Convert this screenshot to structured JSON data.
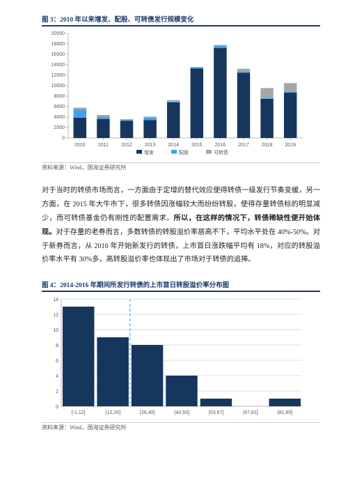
{
  "figure3": {
    "caption": "图 3：2010 年以来增发、配股、可转债发行规模变化",
    "source": "资料来源：Wind，国海证券研究所",
    "type": "bar-stacked",
    "categories": [
      "2010",
      "2011",
      "2012",
      "2013",
      "2014",
      "2015",
      "2016",
      "2017",
      "2018",
      "2019"
    ],
    "series": [
      {
        "name": "增发",
        "color": "#16365e",
        "values": [
          3900,
          3600,
          3300,
          3400,
          6800,
          13300,
          17200,
          12500,
          7500,
          8700
        ]
      },
      {
        "name": "配股",
        "color": "#3fa2e9",
        "values": [
          1500,
          400,
          100,
          500,
          150,
          200,
          400,
          150,
          150,
          100
        ]
      },
      {
        "name": "可转债",
        "color": "#a6a6a6",
        "values": [
          400,
          400,
          200,
          200,
          300,
          100,
          200,
          600,
          1900,
          1700
        ]
      }
    ],
    "ylim": [
      0,
      20000
    ],
    "ytick_step": 2000,
    "axis_color": "#b7b7b7",
    "bg": "#ffffff",
    "label_fontsize": 7,
    "legend_marker_size": 8
  },
  "paragraph": {
    "pre": "对于当时的转债市场而言，一方面由于定增的替代效应使得转债一级发行节奏变缓，另一方面，在 2015 年大牛市下，很多转债因涨幅较大而纷纷转股，使得存量转债标的明显减少，而可转债基金仍有刚性的配置需求。",
    "bold": "所以，在这样的情况下，转债稀缺性便开始体现。",
    "post": "对于存量的老券而言，多数转债的转股溢价率居高不下，平均水平处在 40%-50%。对于新券而言，从 2016 年开始新发行的转债，上市首日涨跌幅平均有 18%，对应的转股溢价率水平有 30%多，高转股溢价率也体现出了市场对于转债的追捧。"
  },
  "figure4": {
    "caption": "图 4：2014-2016 年期间所发行转债的上市首日转股溢价率分布图",
    "source": "资料来源：Wind，国海证券研究所",
    "type": "histogram",
    "bins": [
      "[-1,12]",
      "(12,26]",
      "(26,40]",
      "(40,53]",
      "(53,67]",
      "(67,81]",
      "(81,95]"
    ],
    "values": [
      13,
      9,
      8,
      4,
      1,
      0,
      1
    ],
    "bar_color": "#16365e",
    "ylim": [
      0,
      14
    ],
    "ytick_step": 2,
    "axis_color": "#b7b7b7",
    "grid_color": "#dadde2",
    "dash_color": "#6fb6ff",
    "dash_after_index": 1,
    "label_fontsize": 7
  }
}
